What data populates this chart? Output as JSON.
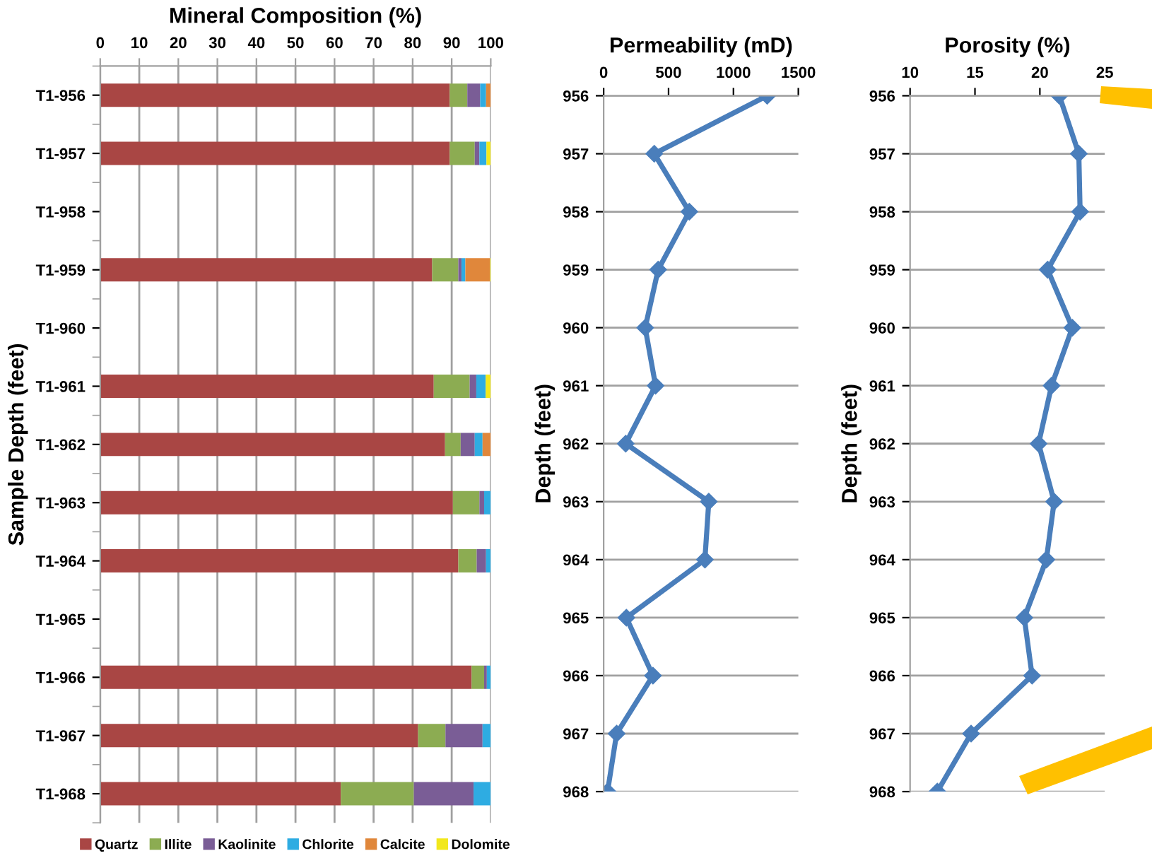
{
  "chart_data": [
    {
      "type": "bar",
      "orientation": "horizontal",
      "stacked": true,
      "title": "Mineral Composition (%)",
      "ylabel": "Sample Depth (feet)",
      "categories": [
        "T1-956",
        "T1-957",
        "T1-958",
        "T1-959",
        "T1-960",
        "T1-961",
        "T1-962",
        "T1-963",
        "T1-964",
        "T1-965",
        "T1-966",
        "T1-967",
        "T1-968"
      ],
      "series": [
        {
          "name": "Quartz",
          "color": "#a94644",
          "values": [
            89.5,
            89.5,
            null,
            85.0,
            null,
            85.4,
            88.3,
            90.3,
            91.7,
            null,
            95.1,
            81.4,
            61.6
          ]
        },
        {
          "name": "Illite",
          "color": "#8cac52",
          "values": [
            4.5,
            6.4,
            null,
            6.7,
            null,
            9.2,
            4.0,
            6.8,
            4.7,
            null,
            3.2,
            7.0,
            18.7
          ]
        },
        {
          "name": "Kaolinite",
          "color": "#7a5d96",
          "values": [
            3.3,
            1.2,
            null,
            0.8,
            null,
            1.7,
            3.6,
            1.2,
            2.4,
            null,
            0.7,
            9.5,
            15.3
          ]
        },
        {
          "name": "Chlorite",
          "color": "#2eace2",
          "values": [
            1.5,
            1.8,
            null,
            1.0,
            null,
            2.4,
            2.0,
            1.7,
            1.2,
            null,
            1.0,
            2.1,
            4.4
          ]
        },
        {
          "name": "Calcite",
          "color": "#e0873b",
          "values": [
            1.2,
            0,
            null,
            6.3,
            null,
            0,
            2.1,
            0,
            0,
            null,
            0,
            0,
            0
          ]
        },
        {
          "name": "Dolomite",
          "color": "#f2e81c",
          "values": [
            0,
            1.1,
            null,
            0.2,
            null,
            1.3,
            0,
            0,
            0,
            null,
            0,
            0,
            0
          ]
        }
      ],
      "xlim": [
        0,
        100
      ],
      "xticks": [
        0,
        10,
        20,
        30,
        40,
        50,
        60,
        70,
        80,
        90,
        100
      ],
      "grid": "x",
      "legend": "bottom"
    },
    {
      "type": "line",
      "title": "Permeability (mD)",
      "ylabel": "Depth (feet)",
      "series": [
        {
          "color": "#4a7ebb",
          "x": [
            1260,
            390,
            660,
            420,
            320,
            400,
            170,
            810,
            780,
            175,
            380,
            100,
            30
          ],
          "values": [
            956,
            957,
            958,
            959,
            960,
            961,
            962,
            963,
            964,
            965,
            966,
            967,
            968
          ]
        }
      ],
      "xlim": [
        0,
        1500
      ],
      "xticks": [
        0,
        500,
        1000,
        1500
      ],
      "ylim": [
        968,
        956
      ],
      "yticks": [
        956,
        957,
        958,
        959,
        960,
        961,
        962,
        963,
        964,
        965,
        966,
        967,
        968
      ],
      "grid": "y",
      "marker": "diamond",
      "line_style": "solid"
    },
    {
      "type": "line",
      "title": "Porosity (%)",
      "ylabel": "Depth (feet)",
      "series": [
        {
          "color": "#4a7ebb",
          "x": [
            21.5,
            23.0,
            23.1,
            20.6,
            22.5,
            20.9,
            19.9,
            21.1,
            20.5,
            18.8,
            19.4,
            14.7,
            12.1
          ],
          "values": [
            956,
            957,
            958,
            959,
            960,
            961,
            962,
            963,
            964,
            965,
            966,
            967,
            968
          ]
        }
      ],
      "xlim": [
        10,
        25
      ],
      "xticks": [
        10,
        15,
        20,
        25
      ],
      "ylim": [
        968,
        956
      ],
      "yticks": [
        956,
        957,
        958,
        959,
        960,
        961,
        962,
        963,
        964,
        965,
        966,
        967,
        968
      ],
      "grid": "y",
      "marker": "diamond",
      "line_style": "solid"
    }
  ]
}
